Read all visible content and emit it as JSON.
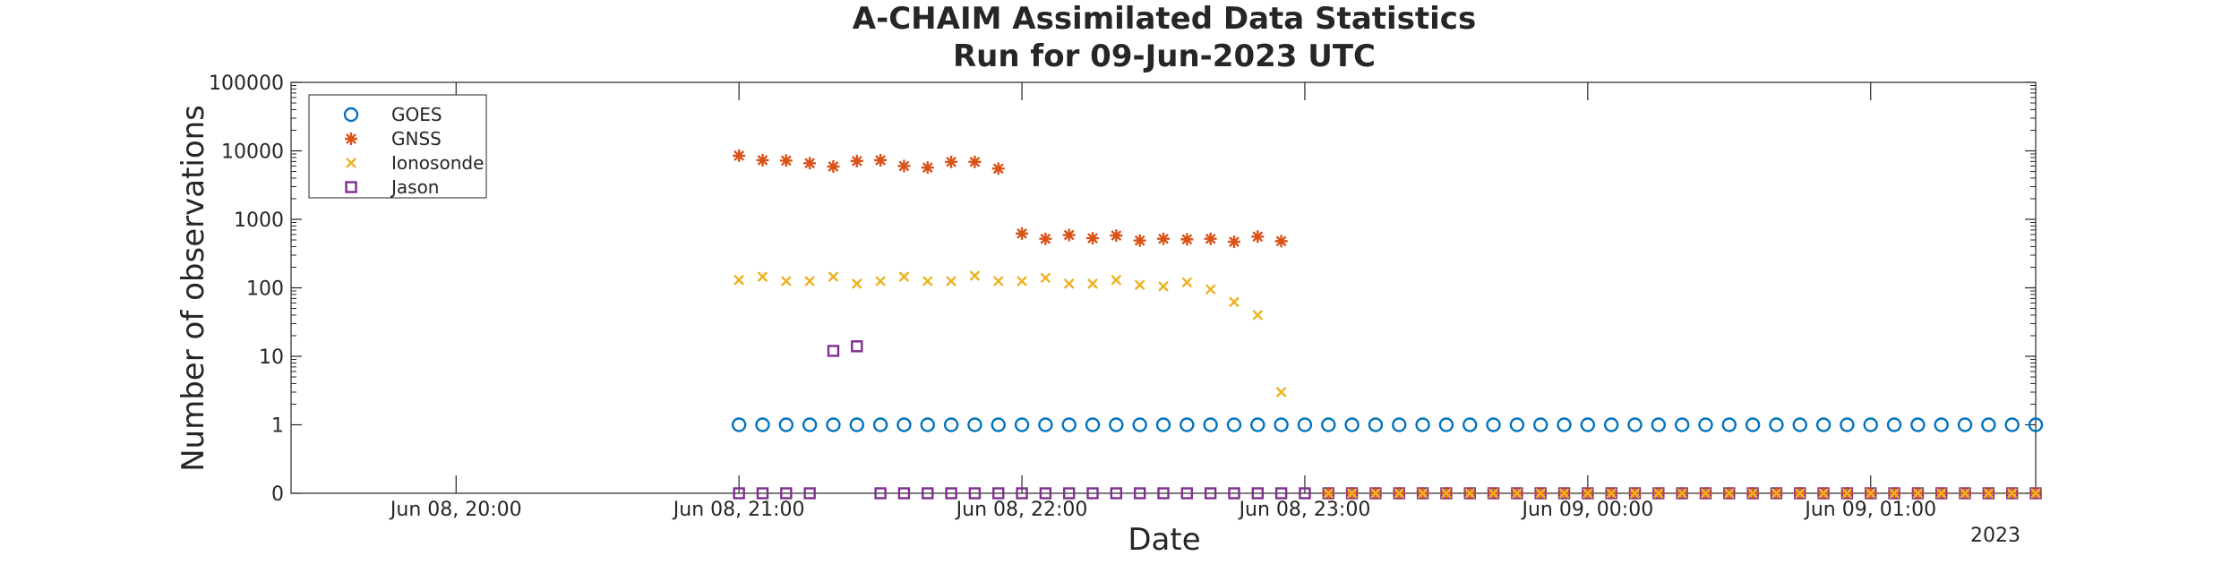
{
  "chart_data": {
    "type": "scatter",
    "title": "A-CHAIM Assimilated Data Statistics",
    "subtitle": "Run for 09-Jun-2023 UTC",
    "xlabel": "Date",
    "ylabel": "Number of observations",
    "x_secondary_label": "2023",
    "y_scale": "log",
    "y_ticks": [
      "0",
      "1",
      "10",
      "100",
      "1000",
      "10000",
      "100000"
    ],
    "x_ticks": [
      "Jun 08, 20:00",
      "Jun 08, 21:00",
      "Jun 08, 22:00",
      "Jun 08, 23:00",
      "Jun 09, 00:00",
      "Jun 09, 01:00"
    ],
    "xlim": [
      "2023-06-08 19:25",
      "2023-06-09 01:35"
    ],
    "ylim": [
      0,
      100000
    ],
    "grid": false,
    "legend_position": "top-left",
    "series": [
      {
        "name": "GOES",
        "marker": "circle",
        "color": "#0072BD",
        "x": [
          "2023-06-08 21:00",
          "2023-06-08 23:00",
          "2023-06-09 01:35"
        ],
        "x_step_minutes": 5,
        "values": [
          1,
          1,
          1
        ]
      },
      {
        "name": "GNSS",
        "marker": "asterisk",
        "color": "#D95319",
        "x": [
          "2023-06-08 21:00",
          "2023-06-08 21:05",
          "2023-06-08 21:10",
          "2023-06-08 21:15",
          "2023-06-08 21:20",
          "2023-06-08 21:25",
          "2023-06-08 21:30",
          "2023-06-08 21:35",
          "2023-06-08 21:40",
          "2023-06-08 21:45",
          "2023-06-08 21:50",
          "2023-06-08 21:55",
          "2023-06-08 22:00",
          "2023-06-08 22:05",
          "2023-06-08 22:10",
          "2023-06-08 22:15",
          "2023-06-08 22:20",
          "2023-06-08 22:25",
          "2023-06-08 22:30",
          "2023-06-08 22:35",
          "2023-06-08 22:40",
          "2023-06-08 22:45",
          "2023-06-08 22:50",
          "2023-06-08 22:55"
        ],
        "values": [
          8500,
          7300,
          7200,
          6600,
          5900,
          7100,
          7300,
          6000,
          5700,
          6900,
          6900,
          5500,
          620,
          520,
          590,
          530,
          580,
          490,
          520,
          510,
          520,
          470,
          560,
          480
        ]
      },
      {
        "name": "Ionosonde",
        "marker": "x",
        "color": "#EDB120",
        "x": [
          "2023-06-08 21:00",
          "2023-06-08 21:05",
          "2023-06-08 21:10",
          "2023-06-08 21:15",
          "2023-06-08 21:20",
          "2023-06-08 21:25",
          "2023-06-08 21:30",
          "2023-06-08 21:35",
          "2023-06-08 21:40",
          "2023-06-08 21:45",
          "2023-06-08 21:50",
          "2023-06-08 21:55",
          "2023-06-08 22:00",
          "2023-06-08 22:05",
          "2023-06-08 22:10",
          "2023-06-08 22:15",
          "2023-06-08 22:20",
          "2023-06-08 22:25",
          "2023-06-08 22:30",
          "2023-06-08 22:35",
          "2023-06-08 22:40",
          "2023-06-08 22:45",
          "2023-06-08 22:50",
          "2023-06-08 22:55"
        ],
        "values": [
          130,
          145,
          125,
          125,
          145,
          115,
          125,
          145,
          125,
          125,
          150,
          125,
          125,
          140,
          115,
          115,
          130,
          110,
          105,
          120,
          95,
          62,
          40,
          3
        ]
      },
      {
        "name": "Jason",
        "marker": "square",
        "color": "#7E2F8E",
        "x": [
          "2023-06-08 21:00",
          "2023-06-08 21:05",
          "2023-06-08 21:10",
          "2023-06-08 21:15",
          "2023-06-08 21:20",
          "2023-06-08 21:25",
          "2023-06-08 21:30",
          "2023-06-08 21:35",
          "2023-06-08 21:40",
          "2023-06-08 21:45",
          "2023-06-08 21:50",
          "2023-06-08 21:55",
          "2023-06-08 22:00",
          "2023-06-08 22:05",
          "2023-06-08 22:10",
          "2023-06-08 22:15",
          "2023-06-08 22:20",
          "2023-06-08 22:25",
          "2023-06-08 22:30",
          "2023-06-08 22:35",
          "2023-06-08 22:40",
          "2023-06-08 22:45",
          "2023-06-08 22:50",
          "2023-06-08 22:55",
          "2023-06-08 23:00",
          "2023-06-09 01:35"
        ],
        "x_step_minutes": 5,
        "values": [
          0,
          0,
          0,
          0,
          12,
          14,
          0,
          0,
          0,
          0,
          0,
          0,
          0,
          0,
          0,
          0,
          0,
          0,
          0,
          0,
          0,
          0,
          0,
          0,
          0,
          0
        ]
      }
    ]
  }
}
